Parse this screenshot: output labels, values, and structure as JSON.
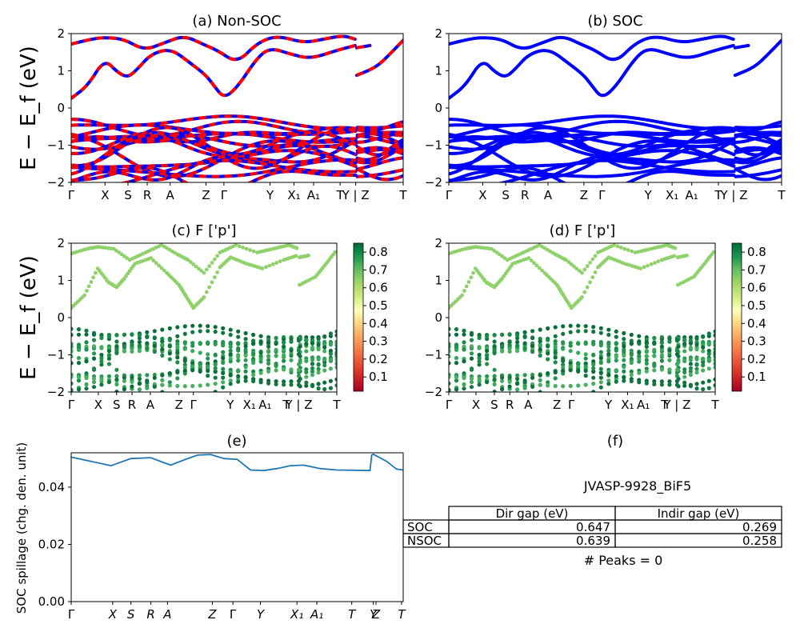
{
  "figure": {
    "ylabel_bands": "E − E_f (eV)",
    "panel_a": {
      "title": "(a) Non-SOC",
      "xticks": [
        "Γ",
        "X",
        "S",
        "R",
        "A",
        "Z",
        "Γ",
        "Y",
        "X₁",
        "A₁",
        "T",
        "Y | Z",
        "T"
      ]
    },
    "panel_b": {
      "title": "(b) SOC",
      "xticks": [
        "Γ",
        "X",
        "S",
        "R",
        "A",
        "Z",
        "Γ",
        "Y",
        "X₁",
        "A₁",
        "T",
        "Y | Z",
        "T"
      ]
    },
    "panel_c": {
      "title": "(c)  F ['p']",
      "xticks": [
        "Γ",
        "X",
        "S",
        "R",
        "A",
        "Z",
        "Γ",
        "Y",
        "X₁",
        "A₁",
        "T",
        "Y | Z",
        "T"
      ]
    },
    "panel_d": {
      "title": "(d) F ['p']",
      "xticks": [
        "Γ",
        "X",
        "S",
        "R",
        "A",
        "Z",
        "Γ",
        "Y",
        "X₁",
        "A₁",
        "T",
        "Y | Z",
        "T"
      ]
    },
    "panel_e": {
      "title": "(e)",
      "ylabel": "SOC spillage (chg. den. unit)",
      "yticks": [
        "0.00",
        "0.02",
        "0.04"
      ],
      "xticks": [
        "Γ",
        "X",
        "S",
        "R",
        "A",
        "Z",
        "Γ",
        "Y",
        "X₁",
        "A₁",
        "T",
        "Y",
        "Z",
        "T"
      ]
    },
    "panel_f": {
      "title": "(f)",
      "material": "JVASP-9928_BiF5",
      "table": {
        "headers": [
          "Dir gap (eV)",
          "Indir gap (eV)"
        ],
        "rows": [
          {
            "label": "SOC",
            "dir": "0.647",
            "indir": "0.269"
          },
          {
            "label": "NSOC",
            "dir": "0.639",
            "indir": "0.258"
          }
        ]
      },
      "peaks": "# Peaks = 0"
    },
    "band_yticks": [
      "2",
      "1",
      "0",
      "−1",
      "−2"
    ],
    "colorbar_ticks": [
      "0.8",
      "0.7",
      "0.6",
      "0.5",
      "0.4",
      "0.3",
      "0.2",
      "0.1"
    ]
  },
  "chart_data": [
    {
      "type": "line",
      "title": "(a) Non-SOC",
      "ylabel": "E − E_f (eV)",
      "ylim": [
        -2,
        2
      ],
      "xticks": [
        "Γ",
        "X",
        "S",
        "R",
        "A",
        "Z",
        "Γ",
        "Y",
        "X₁",
        "A₁",
        "T",
        "Y | Z",
        "T"
      ],
      "series": [
        {
          "name": "",
          "color": "#ff0000"
        }
      ],
      "notes": "red bands overlaid on blue (dashed); conduction band minimum ~0.26 eV at Γ; valence bands clustered between −2 and −0.3 eV"
    },
    {
      "type": "line",
      "title": "(b) SOC",
      "ylim": [
        -2,
        2
      ],
      "xticks": [
        "Γ",
        "X",
        "S",
        "R",
        "A",
        "Z",
        "Γ",
        "Y",
        "X₁",
        "A₁",
        "T",
        "Y | Z",
        "T"
      ],
      "series": [
        {
          "name": "",
          "color": "#0000ff"
        }
      ]
    },
    {
      "type": "scatter",
      "title": "(c)  F ['p']",
      "ylabel": "E − E_f (eV)",
      "ylim": [
        -2,
        2
      ],
      "colorbar": {
        "cmap": "RdYlGn",
        "range": [
          0.02,
          0.85
        ]
      }
    },
    {
      "type": "scatter",
      "title": "(d) F ['p']",
      "ylim": [
        -2,
        2
      ],
      "colorbar": {
        "cmap": "RdYlGn",
        "range": [
          0.02,
          0.85
        ]
      }
    },
    {
      "type": "line",
      "title": "(e)",
      "ylabel": "SOC spillage (chg. den. unit)",
      "ylim": [
        0,
        0.052
      ],
      "x": [
        0,
        0.06,
        0.12,
        0.18,
        0.24,
        0.28,
        0.3,
        0.34,
        0.38,
        0.42,
        0.46,
        0.5,
        0.54,
        0.58,
        0.62,
        0.66,
        0.7,
        0.75,
        0.8,
        0.85,
        0.9,
        0.905,
        0.91,
        0.95,
        0.98,
        1.0
      ],
      "y": [
        0.0505,
        0.049,
        0.0475,
        0.05,
        0.0503,
        0.0485,
        0.0477,
        0.0495,
        0.0512,
        0.0514,
        0.05,
        0.0497,
        0.046,
        0.0458,
        0.0465,
        0.0475,
        0.0477,
        0.0465,
        0.046,
        0.0459,
        0.0458,
        0.0512,
        0.0515,
        0.049,
        0.0463,
        0.046
      ],
      "series": [
        {
          "name": "",
          "color": "#1f77b4"
        }
      ]
    }
  ]
}
